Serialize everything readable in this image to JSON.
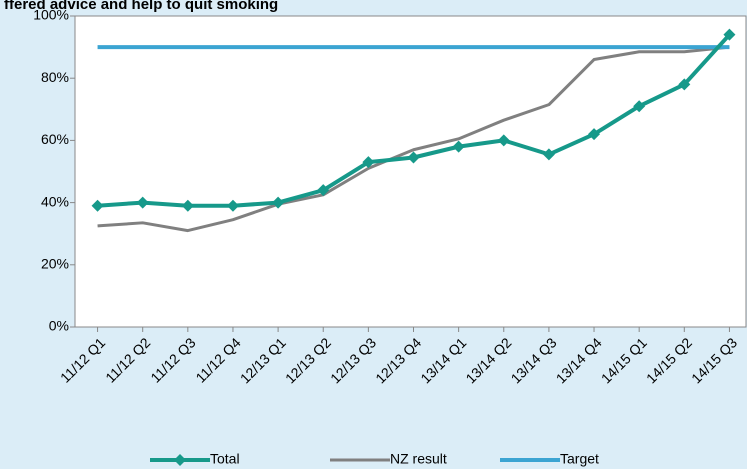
{
  "chart_data": {
    "type": "line",
    "title": "ffered advice and help to quit smoking",
    "categories": [
      "11/12 Q1",
      "11/12 Q2",
      "11/12 Q3",
      "11/12 Q4",
      "12/13 Q1",
      "12/13 Q2",
      "12/13 Q3",
      "12/13 Q4",
      "13/14 Q1",
      "13/14 Q2",
      "13/14 Q3",
      "13/14 Q4",
      "14/15 Q1",
      "14/15 Q2",
      "14/15 Q3"
    ],
    "series": [
      {
        "name": "Total",
        "color": "#16998a",
        "values": [
          39,
          40,
          39,
          39,
          40,
          44,
          53,
          54.5,
          58,
          60,
          55.5,
          62,
          71,
          78,
          94
        ]
      },
      {
        "name": "NZ result",
        "color": "#808080",
        "values": [
          32.5,
          33.5,
          31,
          34.5,
          39.5,
          42.5,
          51,
          57,
          60.5,
          66.5,
          71.5,
          86,
          88.5,
          88.5,
          90
        ]
      },
      {
        "name": "Target",
        "color": "#3ba4d2",
        "values": [
          90,
          90,
          90,
          90,
          90,
          90,
          90,
          90,
          90,
          90,
          90,
          90,
          90,
          90,
          90
        ]
      }
    ],
    "ylim": [
      0,
      100
    ],
    "yticks": [
      {
        "value": 0,
        "label": "0%"
      },
      {
        "value": 20,
        "label": "20%"
      },
      {
        "value": 40,
        "label": "40%"
      },
      {
        "value": 60,
        "label": "60%"
      },
      {
        "value": 80,
        "label": "80%"
      },
      {
        "value": 100,
        "label": "100%"
      }
    ],
    "legend": "bottom"
  }
}
